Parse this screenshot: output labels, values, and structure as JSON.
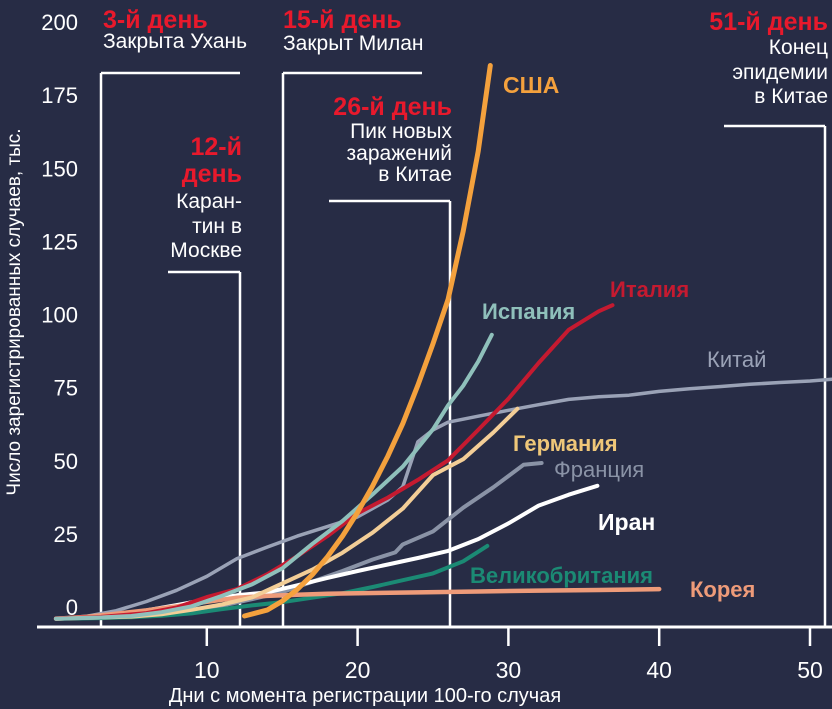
{
  "chart_data": {
    "type": "line",
    "xlabel": "Дни с момента регистрации 100-го случая",
    "ylabel": "Число зарегистрированных случаев, тыс.",
    "x_ticks": [
      10,
      20,
      30,
      40,
      50
    ],
    "y_ticks": [
      0,
      25,
      50,
      75,
      100,
      125,
      150,
      175,
      200
    ],
    "xlim": [
      0,
      51.5
    ],
    "ylim": [
      0,
      200
    ],
    "grid": false,
    "background": "#272C45",
    "accent_red": "#E8192C",
    "text_white": "#FFFFFF",
    "series": [
      {
        "name": "Китай",
        "color": "#9AA2B6",
        "bold_label": false,
        "points": [
          [
            0,
            0.1
          ],
          [
            2,
            0.9
          ],
          [
            4,
            2.8
          ],
          [
            6,
            5.9
          ],
          [
            8,
            9.7
          ],
          [
            10,
            14.4
          ],
          [
            12,
            20.4
          ],
          [
            14,
            24.3
          ],
          [
            16,
            28.0
          ],
          [
            18,
            31.2
          ],
          [
            20,
            34.5
          ],
          [
            22,
            40.2
          ],
          [
            23,
            44.7
          ],
          [
            24,
            59.9
          ],
          [
            25,
            63.9
          ],
          [
            26,
            66.5
          ],
          [
            28,
            68.5
          ],
          [
            30,
            70.5
          ],
          [
            32,
            72.4
          ],
          [
            34,
            74.2
          ],
          [
            36,
            75.1
          ],
          [
            38,
            75.6
          ],
          [
            40,
            76.9
          ],
          [
            42,
            77.8
          ],
          [
            44,
            78.5
          ],
          [
            46,
            79.3
          ],
          [
            48,
            79.9
          ],
          [
            50,
            80.4
          ],
          [
            51.5,
            81.0
          ]
        ]
      },
      {
        "name": "Франция",
        "color": "#8A93A6",
        "bold_label": false,
        "points": [
          [
            0,
            0.1
          ],
          [
            3,
            0.4
          ],
          [
            5,
            0.9
          ],
          [
            7,
            1.6
          ],
          [
            9,
            2.9
          ],
          [
            11,
            4.5
          ],
          [
            13,
            6.7
          ],
          [
            15,
            9.1
          ],
          [
            17,
            12.6
          ],
          [
            19,
            16.2
          ],
          [
            21,
            20.1
          ],
          [
            22.5,
            22.5
          ],
          [
            23,
            25.2
          ],
          [
            25,
            29.6
          ],
          [
            27,
            37.6
          ],
          [
            29,
            44.5
          ],
          [
            31,
            52.1
          ],
          [
            32.2,
            52.7
          ]
        ]
      },
      {
        "name": "Иран",
        "color": "#FFFFFF",
        "bold_label": true,
        "points": [
          [
            0,
            0.14
          ],
          [
            2,
            0.6
          ],
          [
            4,
            1.5
          ],
          [
            6,
            2.9
          ],
          [
            8,
            4.7
          ],
          [
            10,
            6.6
          ],
          [
            12,
            8.0
          ],
          [
            14,
            9.0
          ],
          [
            16,
            11.4
          ],
          [
            18,
            13.9
          ],
          [
            20,
            16.2
          ],
          [
            22,
            18.4
          ],
          [
            24,
            20.6
          ],
          [
            26,
            23.0
          ],
          [
            28,
            27.0
          ],
          [
            30,
            32.3
          ],
          [
            32,
            38.3
          ],
          [
            34,
            42.0
          ],
          [
            35.9,
            45.0
          ]
        ]
      },
      {
        "name": "Великобритания",
        "color": "#1B8A74",
        "bold_label": true,
        "points": [
          [
            0,
            0.1
          ],
          [
            3,
            0.3
          ],
          [
            5,
            0.6
          ],
          [
            7,
            1.1
          ],
          [
            9,
            1.9
          ],
          [
            11,
            3.3
          ],
          [
            13,
            4.6
          ],
          [
            15,
            5.7
          ],
          [
            17,
            7.2
          ],
          [
            19,
            8.7
          ],
          [
            21,
            10.8
          ],
          [
            23,
            13.1
          ],
          [
            25,
            15.4
          ],
          [
            27,
            19.5
          ],
          [
            28.6,
            24.7
          ]
        ]
      },
      {
        "name": "Корея",
        "color": "#EE9B79",
        "bold_label": true,
        "points": [
          [
            0,
            0.1
          ],
          [
            2,
            0.7
          ],
          [
            4,
            1.8
          ],
          [
            6,
            2.9
          ],
          [
            8,
            4.3
          ],
          [
            10,
            5.8
          ],
          [
            12,
            7.2
          ],
          [
            14,
            7.8
          ],
          [
            16,
            8.2
          ],
          [
            18,
            8.5
          ],
          [
            20,
            8.7
          ],
          [
            24,
            9.0
          ],
          [
            28,
            9.3
          ],
          [
            32,
            9.6
          ],
          [
            36,
            9.8
          ],
          [
            40,
            10.1
          ]
        ]
      },
      {
        "name": "Италия",
        "color": "#C51A30",
        "bold_label": true,
        "points": [
          [
            0,
            0.2
          ],
          [
            3,
            0.7
          ],
          [
            6,
            2.0
          ],
          [
            8,
            3.9
          ],
          [
            10,
            7.4
          ],
          [
            12,
            10.1
          ],
          [
            14,
            15.1
          ],
          [
            16,
            21.2
          ],
          [
            18,
            28.0
          ],
          [
            20,
            35.7
          ],
          [
            22,
            41.0
          ],
          [
            24,
            47.0
          ],
          [
            26,
            53.6
          ],
          [
            28,
            63.9
          ],
          [
            30,
            74.4
          ],
          [
            32,
            86.5
          ],
          [
            34,
            97.7
          ],
          [
            36,
            104.0
          ],
          [
            36.9,
            106.0
          ]
        ]
      },
      {
        "name": "Германия",
        "color": "#F3CE97",
        "bold_label": true,
        "label_color": "#EFC779",
        "points": [
          [
            0,
            0.13
          ],
          [
            3,
            0.5
          ],
          [
            5,
            0.8
          ],
          [
            7,
            1.6
          ],
          [
            9,
            3.1
          ],
          [
            11,
            4.9
          ],
          [
            13,
            7.3
          ],
          [
            15,
            12.0
          ],
          [
            17,
            16.7
          ],
          [
            19,
            22.4
          ],
          [
            21,
            29.2
          ],
          [
            23,
            37.3
          ],
          [
            25,
            48.6
          ],
          [
            27,
            54.0
          ],
          [
            29,
            63.0
          ],
          [
            30.6,
            71.0
          ]
        ]
      },
      {
        "name": "Испания",
        "color": "#8FC0BB",
        "bold_label": true,
        "points": [
          [
            0,
            0.1
          ],
          [
            3,
            0.5
          ],
          [
            5,
            1.0
          ],
          [
            7,
            2.3
          ],
          [
            9,
            4.3
          ],
          [
            11,
            7.8
          ],
          [
            13,
            11.7
          ],
          [
            15,
            17.1
          ],
          [
            17,
            25.4
          ],
          [
            19,
            33.1
          ],
          [
            21,
            42.1
          ],
          [
            23,
            51.5
          ],
          [
            25,
            64.1
          ],
          [
            26,
            72.2
          ],
          [
            27,
            78.8
          ],
          [
            28,
            87.0
          ],
          [
            28.9,
            96.0
          ]
        ]
      },
      {
        "name": "США",
        "color": "#F4A13D",
        "bold_label": true,
        "points": [
          [
            12.5,
            1.0
          ],
          [
            14,
            3.0
          ],
          [
            15,
            6.0
          ],
          [
            16,
            10.0
          ],
          [
            17,
            15.0
          ],
          [
            18,
            21.0
          ],
          [
            19,
            28.0
          ],
          [
            20,
            36.0
          ],
          [
            21,
            45.0
          ],
          [
            22,
            55.0
          ],
          [
            23,
            66.0
          ],
          [
            24,
            79.0
          ],
          [
            25,
            93.0
          ],
          [
            26,
            108.0
          ],
          [
            27,
            131.0
          ],
          [
            28,
            158.0
          ],
          [
            28.8,
            187.0
          ]
        ]
      }
    ],
    "annotations": [
      {
        "day": 3,
        "day_label": "3-й день",
        "title_lines": [
          "3-й день"
        ],
        "lines": [
          "Закрыта Ухань"
        ]
      },
      {
        "day": 12,
        "day_label": "12-й день",
        "title_lines": [
          "12-й",
          "день"
        ],
        "lines": [
          "Каран-",
          "тин в",
          "Москве"
        ]
      },
      {
        "day": 15,
        "day_label": "15-й день",
        "title_lines": [
          "15-й день"
        ],
        "lines": [
          "Закрыт Милан"
        ]
      },
      {
        "day": 26,
        "day_label": "26-й день",
        "title_lines": [
          "26-й день"
        ],
        "lines": [
          "Пик новых",
          "заражений",
          "в Китае"
        ]
      },
      {
        "day": 51,
        "day_label": "51-й день",
        "title_lines": [
          "51-й день"
        ],
        "lines": [
          "Конец",
          "эпидемии",
          "в Китае"
        ]
      }
    ]
  }
}
